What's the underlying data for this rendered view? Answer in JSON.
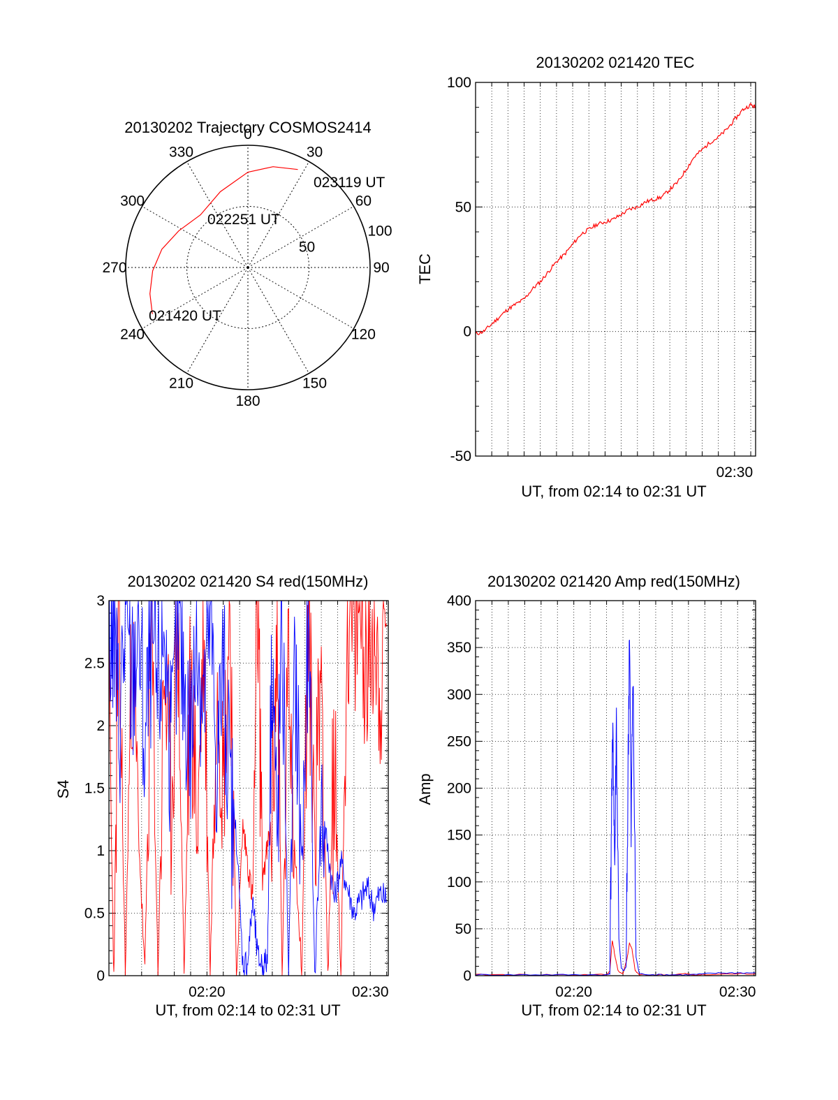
{
  "colors": {
    "series_red": "#ff0000",
    "series_blue": "#0000ff",
    "axes": "#000000",
    "grid": "#000000"
  },
  "chart_data": [
    {
      "type": "polar",
      "title": "20130202 Trajectory COSMOS2414",
      "azimuth_labels": [
        "0",
        "30",
        "60",
        "90",
        "120",
        "150",
        "180",
        "210",
        "240",
        "270",
        "300",
        "330"
      ],
      "radial_labels": [
        "50",
        "100"
      ],
      "grid": true,
      "series": [
        {
          "color": "red",
          "points": [
            {
              "az": 244,
              "r": 87
            },
            {
              "az": 255,
              "r": 83
            },
            {
              "az": 268,
              "r": 78
            },
            {
              "az": 282,
              "r": 72
            },
            {
              "az": 298,
              "r": 64
            },
            {
              "az": 318,
              "r": 58
            },
            {
              "az": 340,
              "r": 66
            },
            {
              "az": 0,
              "r": 78
            },
            {
              "az": 14,
              "r": 85
            },
            {
              "az": 27,
              "r": 90
            }
          ]
        }
      ],
      "annotations": [
        "023119 UT",
        "022251 UT",
        "021420 UT"
      ]
    },
    {
      "type": "line",
      "title": "20130202 021420 TEC",
      "xlabel": "UT, from 02:14 to 02:31 UT",
      "ylabel": "TEC",
      "xlim": [
        14.0,
        31.3
      ],
      "ylim": [
        -50,
        100
      ],
      "yticks": [
        "-50",
        "0",
        "50",
        "100"
      ],
      "xticks": [
        {
          "x": 30,
          "label": "02:30"
        }
      ],
      "grid": true,
      "series": [
        {
          "color": "red",
          "x": [
            14.0,
            14.5,
            15.0,
            15.5,
            16.0,
            16.5,
            17.0,
            17.5,
            18.0,
            18.5,
            19.0,
            19.5,
            20.0,
            20.5,
            21.0,
            21.5,
            22.0,
            22.5,
            23.0,
            23.5,
            24.0,
            24.5,
            25.0,
            25.5,
            26.0,
            26.5,
            27.0,
            27.5,
            28.0,
            28.5,
            29.0,
            29.5,
            30.0,
            30.5,
            31.0,
            31.3
          ],
          "values": [
            -1,
            0,
            3,
            6,
            9,
            11,
            13,
            17,
            20,
            24,
            28,
            31,
            35,
            39,
            41,
            43,
            44,
            45,
            47,
            49,
            50,
            52,
            53,
            54,
            57,
            60,
            65,
            70,
            73,
            76,
            78,
            81,
            85,
            89,
            91,
            90
          ]
        }
      ]
    },
    {
      "type": "line",
      "title": "20130202 021420 S4 red(150MHz)",
      "xlabel": "UT, from 02:14 to 02:31 UT",
      "ylabel": "S4",
      "xlim": [
        14.0,
        31.1
      ],
      "ylim": [
        0,
        3
      ],
      "yticks": [
        "0",
        "0.5",
        "1",
        "1.5",
        "2",
        "2.5",
        "3"
      ],
      "xticks": [
        {
          "x": 20,
          "label": "02:20"
        },
        {
          "x": 30,
          "label": "02:30"
        }
      ],
      "grid": true,
      "series": [
        {
          "color": "red",
          "x": [
            14.0,
            14.3,
            14.6,
            15.0,
            15.4,
            15.8,
            16.2,
            16.6,
            17.0,
            17.4,
            17.8,
            18.2,
            18.6,
            19.0,
            19.4,
            19.8,
            20.2,
            20.6,
            21.0,
            21.4,
            21.8,
            22.2,
            22.5,
            22.8,
            23.1,
            23.4,
            23.7,
            24.0,
            24.3,
            24.6,
            25.0,
            25.4,
            25.8,
            26.2,
            26.6,
            27.0,
            27.4,
            27.8,
            28.2,
            28.6,
            29.0,
            29.4,
            29.8,
            30.2,
            30.6,
            31.0
          ],
          "values": [
            2.2,
            0.0,
            2.9,
            0.0,
            2.6,
            1.2,
            0.0,
            2.8,
            0.0,
            2.5,
            1.3,
            2.9,
            0.0,
            2.4,
            1.1,
            2.8,
            0.0,
            2.6,
            1.5,
            3.0,
            0.0,
            1.2,
            0.9,
            0.6,
            3.0,
            0.8,
            1.0,
            1.3,
            2.7,
            0.0,
            2.5,
            1.0,
            0.0,
            2.8,
            1.2,
            2.6,
            0.0,
            1.8,
            0.0,
            2.9,
            2.6,
            3.0,
            2.4,
            2.9,
            2.3,
            2.8
          ]
        },
        {
          "color": "blue",
          "x": [
            14.0,
            14.3,
            14.6,
            15.0,
            15.4,
            15.8,
            16.2,
            16.6,
            17.0,
            17.4,
            17.8,
            18.2,
            18.6,
            19.0,
            19.4,
            19.8,
            20.2,
            20.6,
            21.0,
            21.4,
            21.8,
            22.2,
            22.5,
            22.8,
            23.1,
            23.4,
            23.7,
            24.0,
            24.3,
            24.6,
            25.0,
            25.4,
            25.8,
            26.2,
            26.6,
            27.0,
            27.4,
            27.8,
            28.2,
            28.6,
            29.0,
            29.4,
            29.8,
            30.2,
            30.6,
            31.0
          ],
          "values": [
            2.6,
            2.9,
            2.0,
            2.8,
            2.3,
            2.9,
            1.8,
            2.7,
            2.2,
            2.9,
            1.6,
            2.8,
            2.4,
            1.9,
            2.7,
            2.2,
            2.9,
            1.7,
            2.5,
            1.4,
            1.1,
            0.1,
            0.12,
            0.6,
            0.15,
            0.1,
            0.12,
            2.8,
            1.0,
            2.9,
            0.0,
            2.5,
            0.9,
            2.7,
            0.0,
            1.4,
            1.0,
            0.6,
            0.9,
            0.7,
            0.5,
            0.6,
            0.7,
            0.55,
            0.65,
            0.6
          ]
        }
      ]
    },
    {
      "type": "line",
      "title": "20130202 021420 Amp red(150MHz)",
      "xlabel": "UT, from 02:14 to 02:31 UT",
      "ylabel": "Amp",
      "xlim": [
        14.0,
        31.1
      ],
      "ylim": [
        0,
        400
      ],
      "yticks": [
        "0",
        "50",
        "100",
        "150",
        "200",
        "250",
        "300",
        "350",
        "400"
      ],
      "xticks": [
        {
          "x": 20,
          "label": "02:20"
        },
        {
          "x": 30,
          "label": "02:30"
        }
      ],
      "grid": true,
      "series": [
        {
          "color": "red",
          "x": [
            14.0,
            16.0,
            18.0,
            20.0,
            22.0,
            22.2,
            22.35,
            22.5,
            22.7,
            23.0,
            23.25,
            23.4,
            23.55,
            23.75,
            24.0,
            25.0,
            26.0,
            26.8,
            27.2,
            28.0,
            30.0,
            31.1
          ],
          "values": [
            1,
            1,
            1,
            1,
            1,
            5,
            38,
            22,
            5,
            2,
            18,
            35,
            28,
            5,
            1,
            1,
            1,
            2,
            1,
            1,
            2,
            2
          ]
        },
        {
          "color": "blue",
          "x": [
            14.0,
            16.0,
            18.0,
            20.0,
            22.0,
            22.2,
            22.3,
            22.4,
            22.5,
            22.6,
            22.75,
            22.9,
            23.05,
            23.2,
            23.3,
            23.4,
            23.5,
            23.6,
            23.8,
            24.0,
            25.0,
            26.0,
            27.0,
            28.0,
            29.0,
            30.0,
            31.1
          ],
          "values": [
            1,
            1,
            1,
            1,
            1,
            2,
            180,
            255,
            120,
            278,
            40,
            8,
            5,
            10,
            200,
            385,
            150,
            325,
            20,
            2,
            1,
            1,
            1,
            2,
            3,
            3,
            3
          ]
        }
      ]
    }
  ]
}
